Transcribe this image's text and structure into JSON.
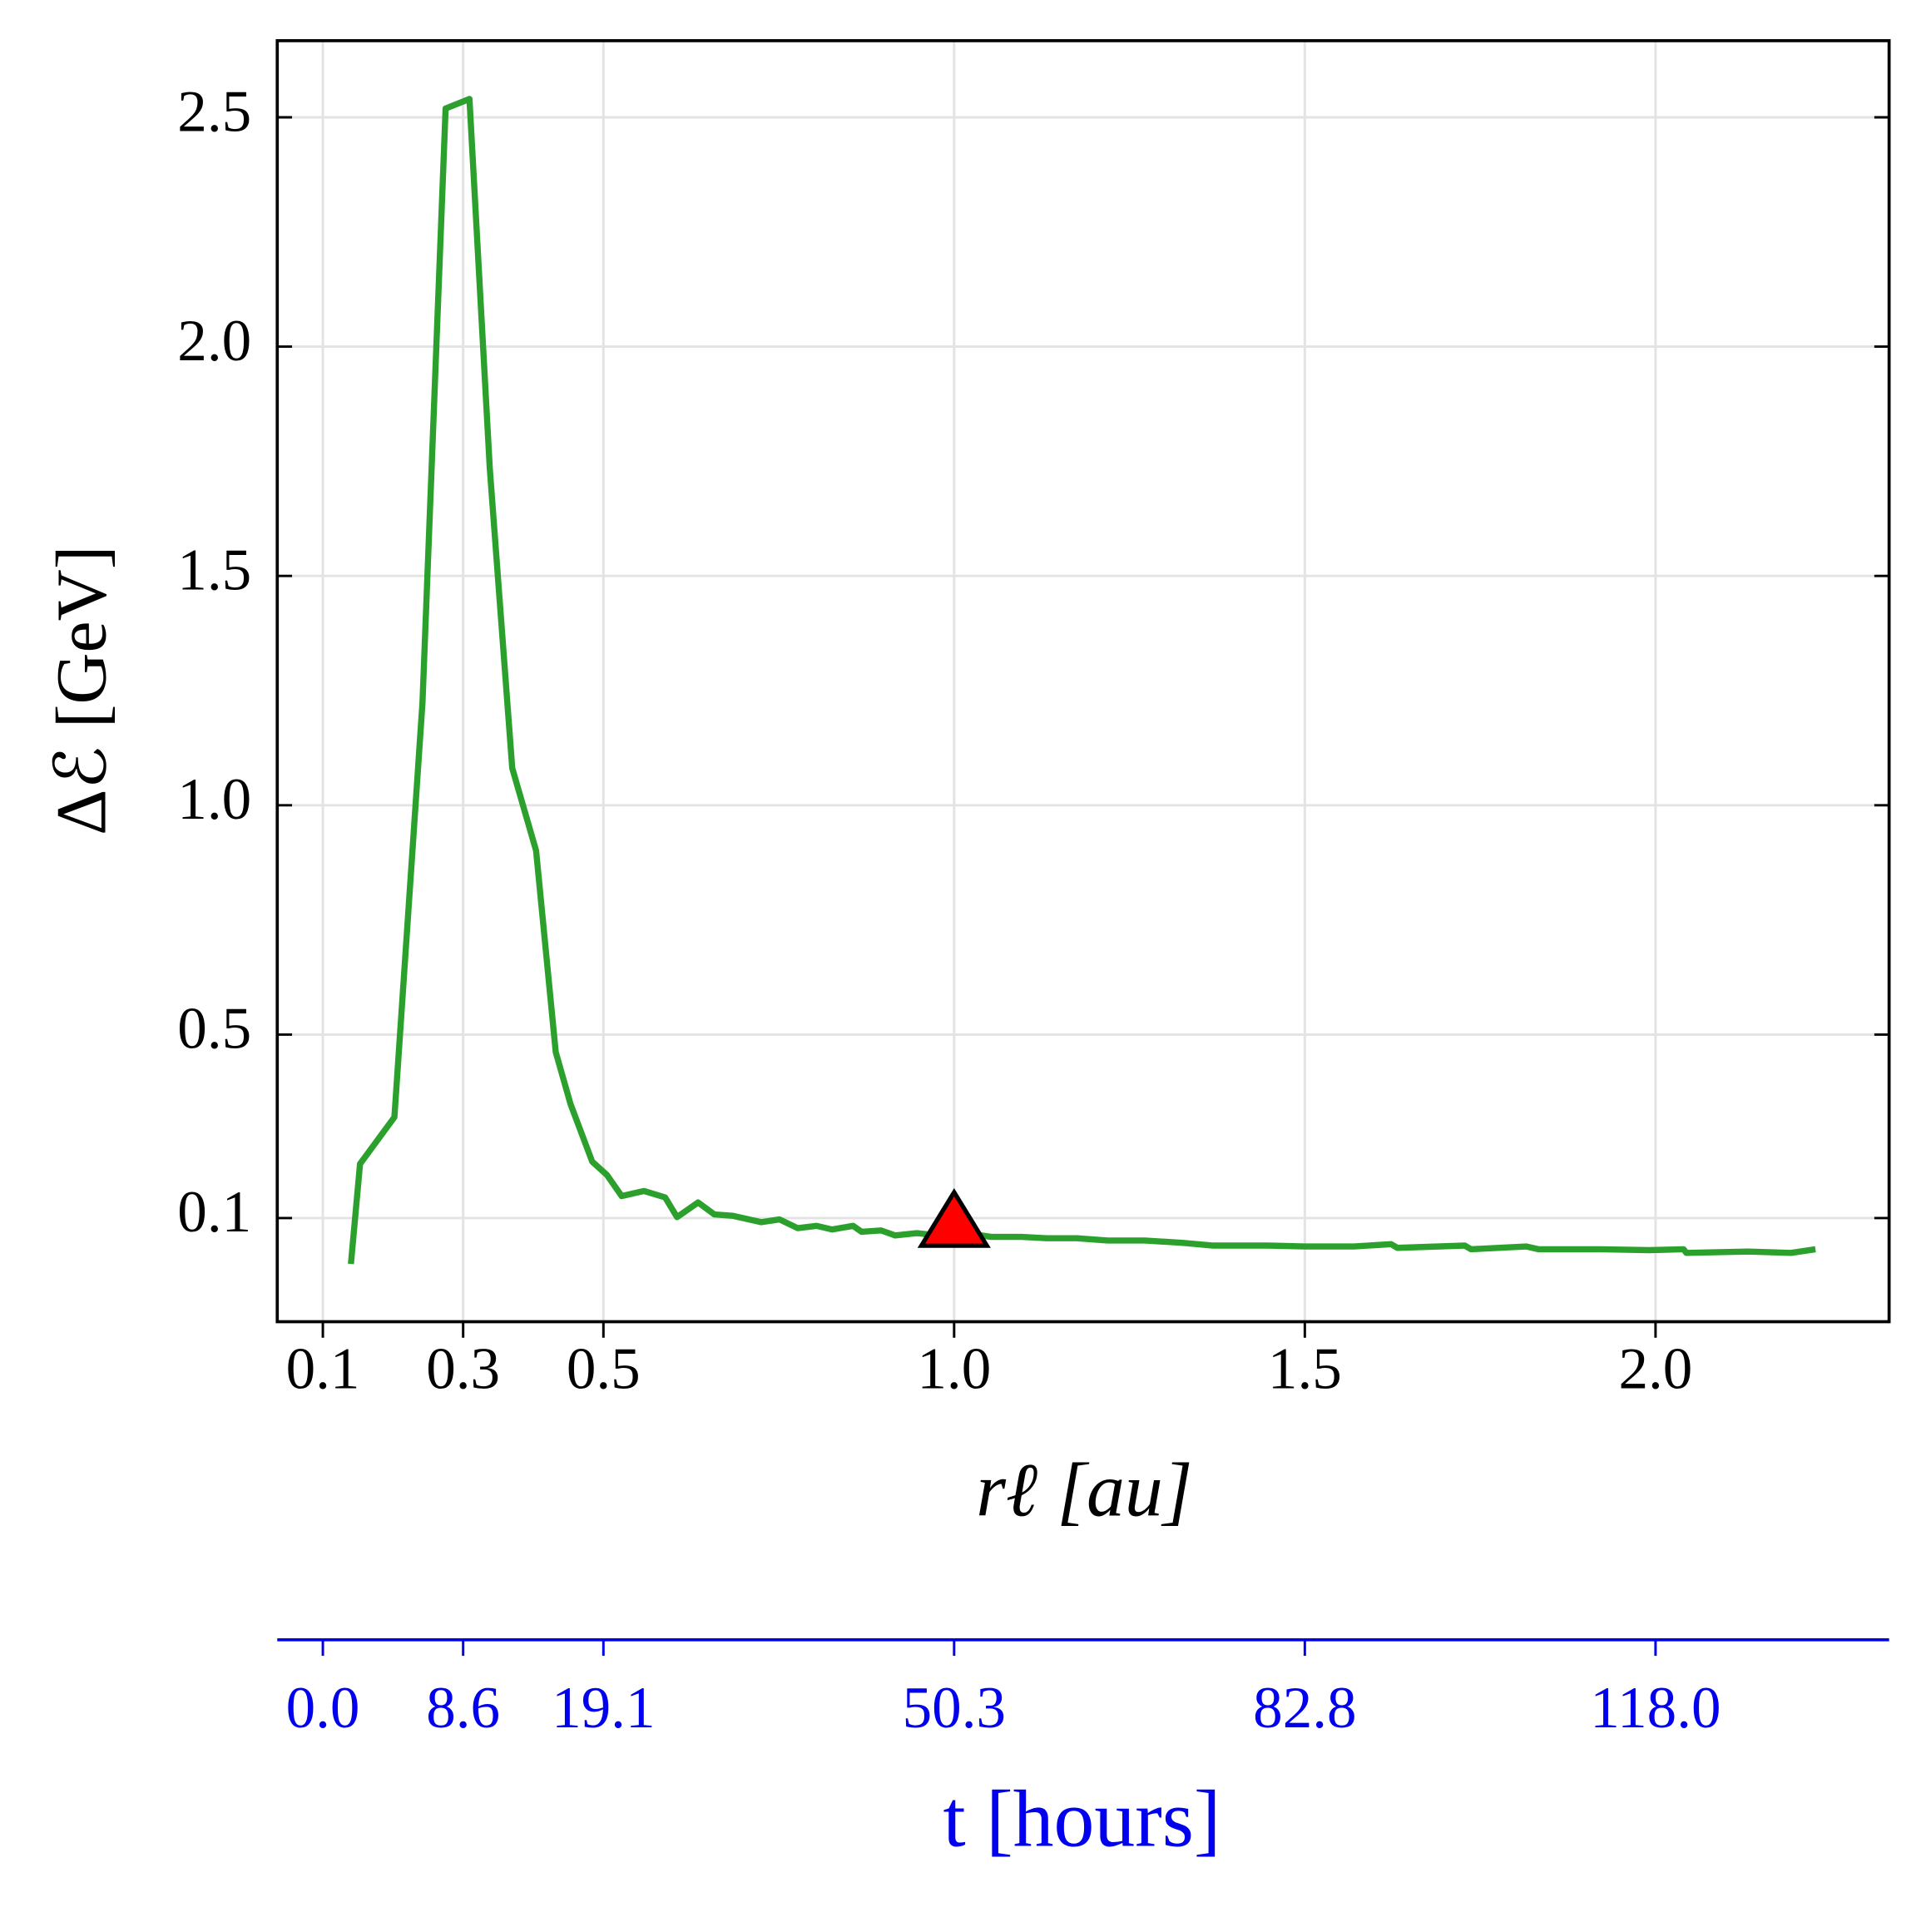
{
  "chart_data": {
    "type": "line",
    "ylabel": "Δℰ [GeV]",
    "xlabel": "rℓ [au]",
    "x2label": "t [hours]",
    "xlim": [
      0.035,
      2.333
    ],
    "ylim": [
      -0.126,
      2.667
    ],
    "xticks": [
      0.1,
      0.3,
      0.5,
      {
        "value": 1,
        "label": "1.0"
      },
      1.5,
      {
        "value": 2,
        "label": "2.0"
      }
    ],
    "yticks": [
      0.1,
      0.5,
      {
        "value": 1,
        "label": "1.0"
      },
      1.5,
      {
        "value": 2,
        "label": "2.0"
      },
      2.5
    ],
    "x2ticks": [
      {
        "value": 0.1,
        "label": "0.0"
      },
      {
        "value": 0.3,
        "label": "8.6"
      },
      {
        "value": 0.5,
        "label": "19.1"
      },
      {
        "value": 1,
        "label": "50.3"
      },
      {
        "value": 1.5,
        "label": "82.8"
      },
      {
        "value": 2,
        "label": "118.0"
      }
    ],
    "x2color": "#0000ee",
    "grid": true,
    "series": [
      {
        "color": "#2ca02c",
        "x": [
          0.14,
          0.153,
          0.202,
          0.242,
          0.275,
          0.309,
          0.338,
          0.37,
          0.404,
          0.432,
          0.453,
          0.484,
          0.505,
          0.526,
          0.558,
          0.588,
          0.605,
          0.635,
          0.658,
          0.684,
          0.725,
          0.751,
          0.777,
          0.804,
          0.826,
          0.856,
          0.868,
          0.896,
          0.916,
          0.947,
          0.977,
          1.0,
          1.026,
          1.053,
          1.096,
          1.132,
          1.175,
          1.219,
          1.272,
          1.325,
          1.368,
          1.447,
          1.5,
          1.57,
          1.623,
          1.632,
          1.728,
          1.737,
          1.816,
          1.833,
          1.921,
          1.991,
          2.04,
          2.044,
          2.132,
          2.193,
          2.228
        ],
        "values": [
          0.0,
          0.218,
          0.32,
          1.223,
          2.519,
          2.54,
          1.734,
          1.081,
          0.901,
          0.462,
          0.349,
          0.223,
          0.194,
          0.148,
          0.159,
          0.145,
          0.102,
          0.134,
          0.108,
          0.105,
          0.091,
          0.097,
          0.078,
          0.083,
          0.075,
          0.083,
          0.07,
          0.073,
          0.062,
          0.067,
          0.062,
          0.065,
          0.065,
          0.059,
          0.059,
          0.056,
          0.056,
          0.051,
          0.051,
          0.046,
          0.04,
          0.04,
          0.038,
          0.038,
          0.043,
          0.035,
          0.04,
          0.032,
          0.038,
          0.032,
          0.032,
          0.03,
          0.032,
          0.024,
          0.027,
          0.024,
          0.032
        ]
      }
    ],
    "markers": [
      {
        "x": 1.0,
        "y": 0.081,
        "color": "#ff0000"
      }
    ]
  }
}
